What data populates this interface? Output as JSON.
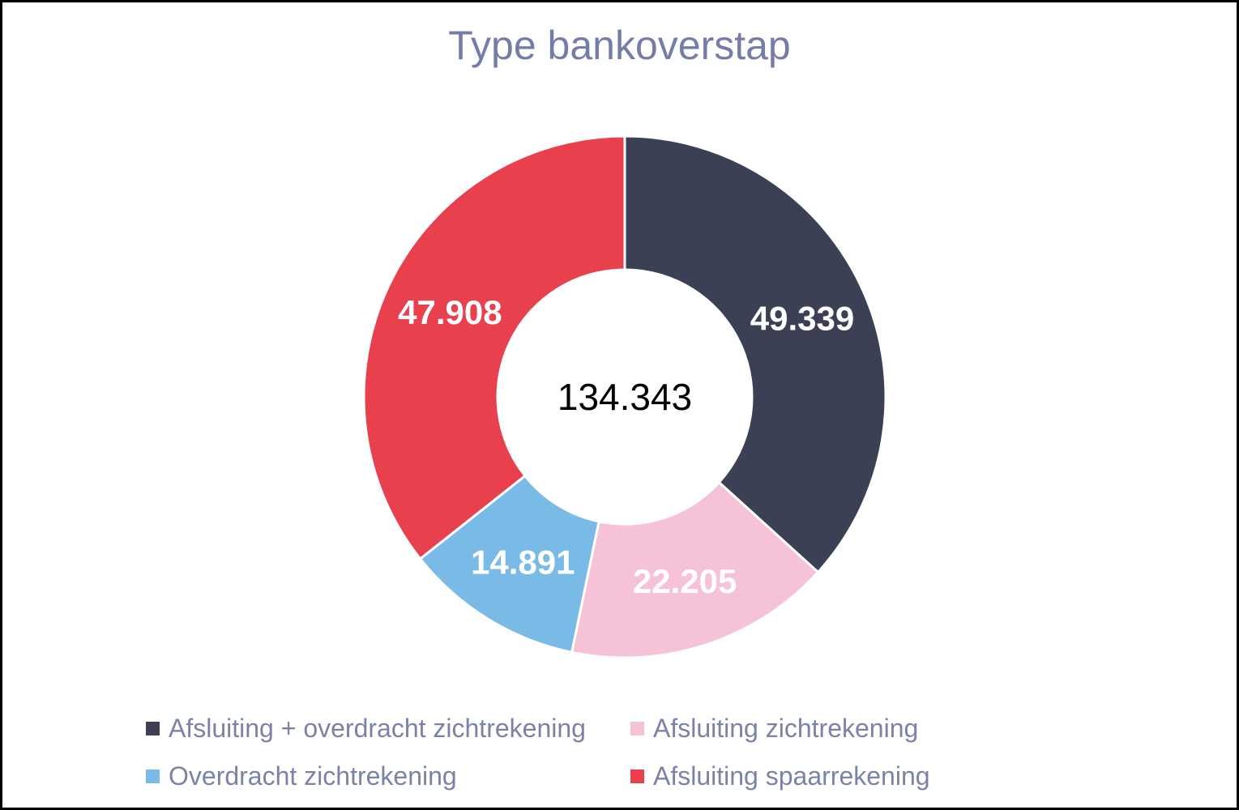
{
  "chart_data": {
    "type": "pie",
    "subtype": "donut",
    "title": "Type bankoverstap",
    "title_color": "#737DA8",
    "legend_position": "bottom",
    "legend_rows": 2,
    "legend_columns": 2,
    "legend_text_color": "#7B82A8",
    "start_angle_deg": 0,
    "direction": "clockwise",
    "hole_ratio": 0.4875,
    "segment_border_color": "#FFFFFF",
    "data_label_color": "#FFFFFF",
    "center_total_value": 134343,
    "center_total_label": "134.343",
    "segments": [
      {
        "label": "Afsluiting + overdracht zichtrekening",
        "value": 49339,
        "display": "49.339",
        "color": "#3B4054"
      },
      {
        "label": "Afsluiting zichtrekening",
        "value": 22205,
        "display": "22.205",
        "color": "#F5C2D7"
      },
      {
        "label": "Overdracht zichtrekening",
        "value": 14891,
        "display": "14.891",
        "color": "#7ABAE6"
      },
      {
        "label": "Afsluiting spaarrekening",
        "value": 47908,
        "display": "47.908",
        "color": "#E8404D"
      }
    ]
  }
}
